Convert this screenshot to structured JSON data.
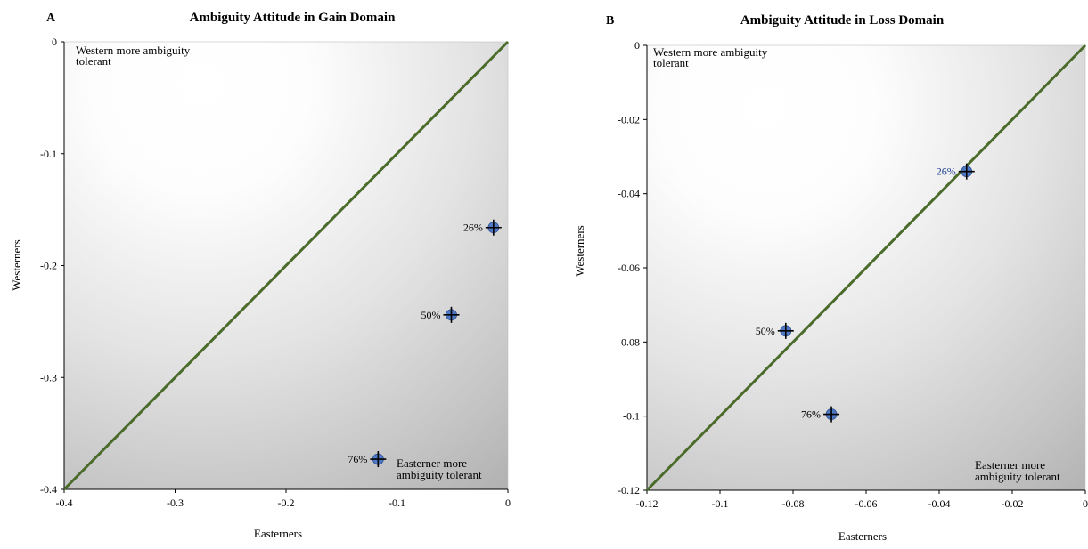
{
  "chart_data": [
    {
      "type": "scatter",
      "panel_letter": "A",
      "title": "Ambiguity Attitude in Gain Domain",
      "xlabel": "Easterners",
      "ylabel": "Westerners",
      "xlim": [
        -0.4,
        0
      ],
      "ylim": [
        -0.4,
        0
      ],
      "xticks": [
        "-0.4",
        "-0.3",
        "-0.2",
        "-0.1",
        "0"
      ],
      "yticks": [
        "0",
        "-0.1",
        "-0.2",
        "-0.3",
        "-0.4"
      ],
      "xtick_values": [
        -0.4,
        -0.3,
        -0.2,
        -0.1,
        0
      ],
      "ytick_values": [
        0,
        -0.1,
        -0.2,
        -0.3,
        -0.4
      ],
      "corner_top_left": [
        "Western more ambiguity",
        "tolerant"
      ],
      "corner_bottom_right": [
        "Easterner more",
        "ambiguity tolerant"
      ],
      "diagonal": true,
      "points": [
        {
          "label": "26%",
          "x": -0.013,
          "y": -0.166
        },
        {
          "label": "50%",
          "x": -0.051,
          "y": -0.244
        },
        {
          "label": "76%",
          "x": -0.117,
          "y": -0.373
        }
      ],
      "colors": {
        "diagonal": "#4a6b2a",
        "marker": "#4f79c4",
        "cross": "#000000",
        "label_blue": "#1f3f8f"
      }
    },
    {
      "type": "scatter",
      "panel_letter": "B",
      "title": "Ambiguity Attitude in Loss Domain",
      "xlabel": "Easterners",
      "ylabel": "Westerners",
      "xlim": [
        -0.12,
        0
      ],
      "ylim": [
        -0.12,
        0
      ],
      "xticks": [
        "-0.12",
        "-0.1",
        "-0.08",
        "-0.06",
        "-0.04",
        "-0.02",
        "0"
      ],
      "yticks": [
        "0",
        "-0.02",
        "-0.04",
        "-0.06",
        "-0.08",
        "-0.1",
        "-0.12"
      ],
      "xtick_values": [
        -0.12,
        -0.1,
        -0.08,
        -0.06,
        -0.04,
        -0.02,
        0
      ],
      "ytick_values": [
        0,
        -0.02,
        -0.04,
        -0.06,
        -0.08,
        -0.1,
        -0.12
      ],
      "corner_top_left": [
        "Western more ambiguity",
        "tolerant"
      ],
      "corner_bottom_right": [
        "Easterner more",
        "ambiguity tolerant"
      ],
      "diagonal": true,
      "points": [
        {
          "label": "26%",
          "x": -0.0325,
          "y": -0.034,
          "label_color": "blue"
        },
        {
          "label": "50%",
          "x": -0.082,
          "y": -0.077
        },
        {
          "label": "76%",
          "x": -0.0695,
          "y": -0.0995
        }
      ],
      "colors": {
        "diagonal": "#4a6b2a",
        "marker": "#4f79c4",
        "cross": "#000000",
        "label_blue": "#1f3f8f"
      }
    }
  ]
}
